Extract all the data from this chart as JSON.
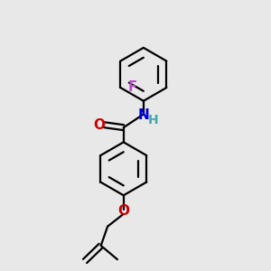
{
  "background_color": "#e8e8e8",
  "bond_color": "#000000",
  "o_color": "#cc0000",
  "n_color": "#0000dd",
  "f_color": "#bb44cc",
  "h_color": "#44aaaa",
  "line_width": 1.6,
  "figsize": [
    3.0,
    3.0
  ],
  "dpi": 100,
  "xlim": [
    0,
    10
  ],
  "ylim": [
    0,
    10
  ]
}
